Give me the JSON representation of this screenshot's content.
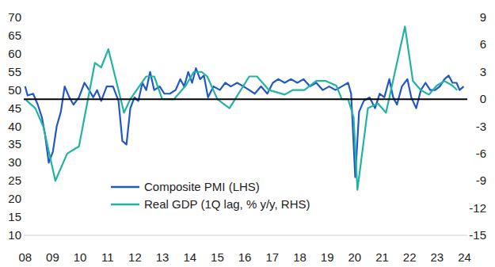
{
  "chart_data": {
    "type": "line",
    "xlim": [
      2007.95,
      2024.1
    ],
    "xticks": [
      {
        "value": 2008,
        "label": "08"
      },
      {
        "value": 2009,
        "label": "09"
      },
      {
        "value": 2010,
        "label": "10"
      },
      {
        "value": 2011,
        "label": "11"
      },
      {
        "value": 2012,
        "label": "12"
      },
      {
        "value": 2013,
        "label": "13"
      },
      {
        "value": 2014,
        "label": "14"
      },
      {
        "value": 2015,
        "label": "15"
      },
      {
        "value": 2016,
        "label": "16"
      },
      {
        "value": 2017,
        "label": "17"
      },
      {
        "value": 2018,
        "label": "18"
      },
      {
        "value": 2019,
        "label": "19"
      },
      {
        "value": 2020,
        "label": "20"
      },
      {
        "value": 2021,
        "label": "21"
      },
      {
        "value": 2022,
        "label": "22"
      },
      {
        "value": 2023,
        "label": "23"
      },
      {
        "value": 2024,
        "label": "24"
      }
    ],
    "ylim": [
      10,
      70
    ],
    "yticks": [
      10,
      15,
      20,
      25,
      30,
      35,
      40,
      45,
      50,
      55,
      60,
      65,
      70
    ],
    "y2lim": [
      -15,
      9
    ],
    "y2ticks": [
      -15,
      -12,
      -9,
      -6,
      -3,
      0,
      3,
      6,
      9
    ],
    "grid": false,
    "legend": "bottom-left",
    "series": [
      {
        "name": "Composite PMI (LHS)",
        "color": "#2258c6",
        "x": [
          2008.0,
          2008.09,
          2008.29,
          2008.46,
          2008.61,
          2008.72,
          2008.86,
          2009.01,
          2009.15,
          2009.3,
          2009.44,
          2009.61,
          2009.76,
          2009.96,
          2010.16,
          2010.33,
          2010.48,
          2010.62,
          2010.77,
          2010.97,
          2011.2,
          2011.4,
          2011.54,
          2011.69,
          2011.83,
          2011.98,
          2012.12,
          2012.27,
          2012.41,
          2012.55,
          2012.7,
          2012.9,
          2013.07,
          2013.27,
          2013.48,
          2013.65,
          2013.79,
          2013.94,
          2014.08,
          2014.22,
          2014.37,
          2014.51,
          2014.66,
          2014.86,
          2015.09,
          2015.29,
          2015.49,
          2015.72,
          2015.95,
          2016.16,
          2016.36,
          2016.59,
          2016.82,
          2017.02,
          2017.22,
          2017.45,
          2017.68,
          2017.91,
          2018.14,
          2018.37,
          2018.6,
          2018.84,
          2019.07,
          2019.3,
          2019.53,
          2019.76,
          2019.87,
          2020.02,
          2020.16,
          2020.33,
          2020.54,
          2020.74,
          2020.91,
          2021.08,
          2021.26,
          2021.4,
          2021.54,
          2021.72,
          2021.92,
          2022.06,
          2022.24,
          2022.41,
          2022.58,
          2022.75,
          2022.93,
          2023.1,
          2023.27,
          2023.42,
          2023.56,
          2023.71,
          2023.82,
          2023.97
        ],
        "values": [
          51,
          48.5,
          49,
          46,
          42.5,
          38,
          30,
          33,
          40,
          44,
          51,
          48,
          46,
          48,
          52,
          50,
          48,
          50,
          47,
          51,
          51,
          47,
          36,
          35,
          45,
          48,
          47,
          52,
          50,
          55,
          50,
          51,
          49,
          49,
          50,
          53,
          51,
          55,
          52,
          56,
          53,
          54,
          48,
          51,
          50,
          52,
          51,
          52,
          51,
          50,
          49,
          51,
          49,
          52,
          53,
          52,
          53,
          52,
          53,
          51,
          52,
          50,
          51,
          50,
          51,
          52,
          49,
          26,
          44,
          47,
          48,
          45,
          49,
          48,
          53,
          48,
          46,
          51,
          53,
          48,
          45,
          50,
          52,
          50,
          50,
          51,
          53,
          54,
          52,
          52,
          50,
          51
        ]
      },
      {
        "name": "Real GDP (1Q lag, % y/y, RHS)",
        "color": "#22b3a3",
        "axis": "y2",
        "x": [
          2008.0,
          2008.37,
          2008.66,
          2009.1,
          2009.53,
          2009.96,
          2010.54,
          2010.77,
          2011.03,
          2011.4,
          2011.6,
          2011.83,
          2012.41,
          2012.7,
          2012.99,
          2013.42,
          2013.85,
          2014.14,
          2014.43,
          2014.63,
          2015.0,
          2015.44,
          2016.16,
          2016.44,
          2016.88,
          2017.45,
          2017.74,
          2018.17,
          2018.6,
          2018.95,
          2019.33,
          2019.53,
          2019.76,
          2019.96,
          2020.1,
          2020.48,
          2020.85,
          2021.14,
          2021.83,
          2022.12,
          2022.41,
          2022.7,
          2022.99,
          2023.27,
          2023.56,
          2023.73
        ],
        "values": [
          0,
          -1,
          -3,
          -9,
          -6,
          -5.2,
          4,
          3.5,
          5.5,
          1,
          -1.5,
          0,
          2.5,
          2.5,
          0,
          0,
          1.5,
          3,
          3,
          2.5,
          0,
          -1,
          2.5,
          2.5,
          1,
          0.5,
          1,
          1,
          2,
          2,
          1.5,
          0,
          0,
          -2,
          -10,
          -1,
          -0.5,
          -1.5,
          8,
          2,
          1,
          0.5,
          1.5,
          2,
          1.5,
          1
        ]
      }
    ]
  }
}
